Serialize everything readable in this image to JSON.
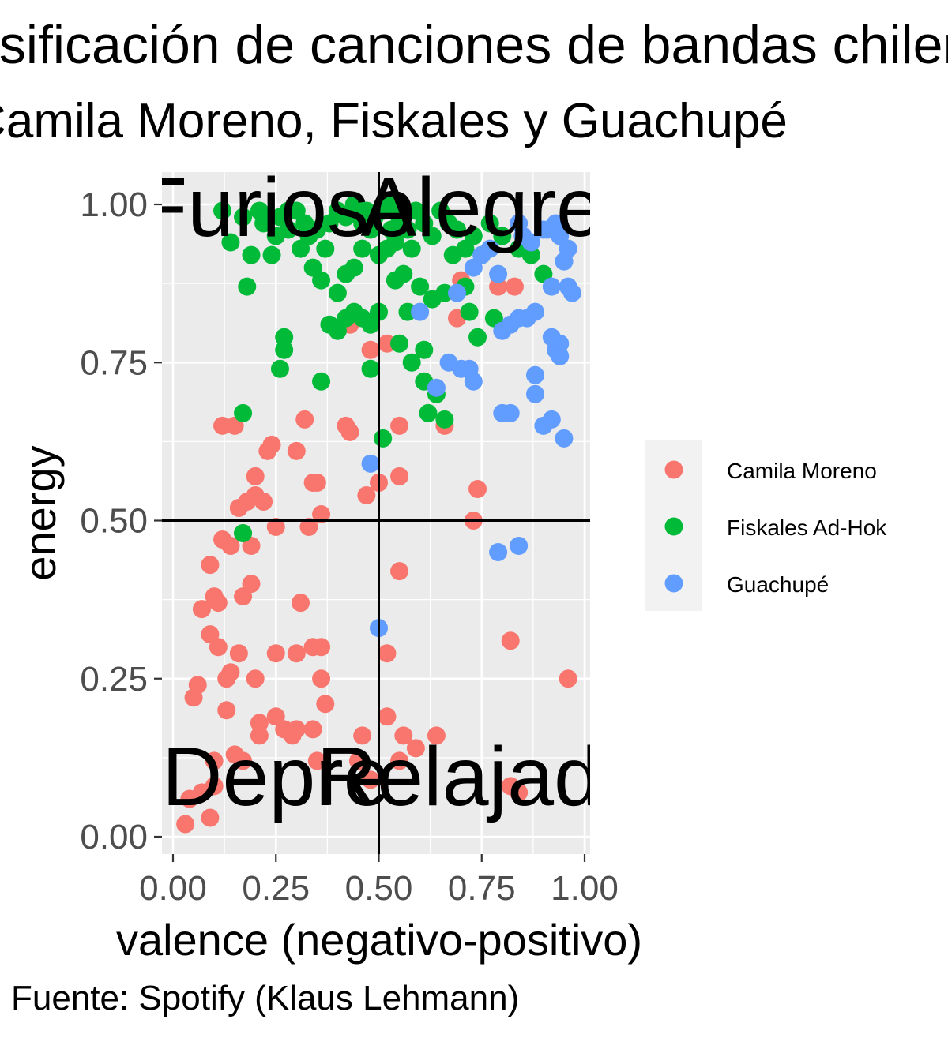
{
  "title": "Clasificación de canciones de bandas chilenas",
  "subtitle": "Camila Moreno, Fiskales y Guachupé",
  "caption": "Fuente: Spotify (Klaus Lehmann)",
  "chart_data": {
    "type": "scatter",
    "xlabel": "valence (negativo-positivo)",
    "ylabel": "energy",
    "xlim": [
      0,
      1
    ],
    "ylim": [
      0,
      1
    ],
    "xticks": [
      "0.00",
      "0.25",
      "0.50",
      "0.75",
      "1.00"
    ],
    "yticks": [
      "0.00",
      "0.25",
      "0.50",
      "0.75",
      "1.00"
    ],
    "grid": true,
    "legend_position": "right",
    "reference_lines": {
      "x": 0.5,
      "y": 0.5
    },
    "quadrant_labels": [
      {
        "text": "Furioso",
        "x": 0.25,
        "y": 1.0
      },
      {
        "text": "Alegre",
        "x": 0.75,
        "y": 1.0
      },
      {
        "text": "Depre",
        "x": 0.25,
        "y": 0.1
      },
      {
        "text": "Relajado",
        "x": 0.75,
        "y": 0.1
      }
    ],
    "series": [
      {
        "name": "Camila Moreno",
        "color": "#F8766D",
        "points": [
          [
            0.03,
            0.02
          ],
          [
            0.04,
            0.06
          ],
          [
            0.07,
            0.07
          ],
          [
            0.09,
            0.03
          ],
          [
            0.1,
            0.08
          ],
          [
            0.1,
            0.12
          ],
          [
            0.05,
            0.22
          ],
          [
            0.06,
            0.24
          ],
          [
            0.09,
            0.32
          ],
          [
            0.11,
            0.3
          ],
          [
            0.13,
            0.25
          ],
          [
            0.14,
            0.26
          ],
          [
            0.16,
            0.29
          ],
          [
            0.13,
            0.2
          ],
          [
            0.17,
            0.12
          ],
          [
            0.15,
            0.13
          ],
          [
            0.2,
            0.25
          ],
          [
            0.21,
            0.18
          ],
          [
            0.21,
            0.16
          ],
          [
            0.25,
            0.29
          ],
          [
            0.25,
            0.19
          ],
          [
            0.27,
            0.17
          ],
          [
            0.29,
            0.16
          ],
          [
            0.3,
            0.17
          ],
          [
            0.3,
            0.29
          ],
          [
            0.31,
            0.37
          ],
          [
            0.34,
            0.17
          ],
          [
            0.35,
            0.12
          ],
          [
            0.34,
            0.3
          ],
          [
            0.36,
            0.25
          ],
          [
            0.36,
            0.3
          ],
          [
            0.37,
            0.21
          ],
          [
            0.07,
            0.36
          ],
          [
            0.1,
            0.38
          ],
          [
            0.11,
            0.37
          ],
          [
            0.09,
            0.43
          ],
          [
            0.12,
            0.47
          ],
          [
            0.14,
            0.46
          ],
          [
            0.17,
            0.48
          ],
          [
            0.17,
            0.38
          ],
          [
            0.19,
            0.4
          ],
          [
            0.19,
            0.46
          ],
          [
            0.16,
            0.52
          ],
          [
            0.18,
            0.53
          ],
          [
            0.2,
            0.54
          ],
          [
            0.2,
            0.57
          ],
          [
            0.22,
            0.53
          ],
          [
            0.25,
            0.49
          ],
          [
            0.23,
            0.61
          ],
          [
            0.24,
            0.62
          ],
          [
            0.3,
            0.61
          ],
          [
            0.32,
            0.66
          ],
          [
            0.33,
            0.49
          ],
          [
            0.34,
            0.56
          ],
          [
            0.35,
            0.56
          ],
          [
            0.36,
            0.51
          ],
          [
            0.12,
            0.65
          ],
          [
            0.15,
            0.65
          ],
          [
            0.42,
            0.65
          ],
          [
            0.43,
            0.64
          ],
          [
            0.47,
            0.54
          ],
          [
            0.48,
            0.77
          ],
          [
            0.5,
            0.56
          ],
          [
            0.52,
            0.78
          ],
          [
            0.55,
            0.65
          ],
          [
            0.55,
            0.57
          ],
          [
            0.55,
            0.42
          ],
          [
            0.52,
            0.29
          ],
          [
            0.52,
            0.19
          ],
          [
            0.56,
            0.16
          ],
          [
            0.59,
            0.14
          ],
          [
            0.64,
            0.16
          ],
          [
            0.46,
            0.16
          ],
          [
            0.45,
            0.12
          ],
          [
            0.48,
            0.09
          ],
          [
            0.55,
            0.12
          ],
          [
            0.66,
            0.65
          ],
          [
            0.69,
            0.82
          ],
          [
            0.73,
            0.5
          ],
          [
            0.74,
            0.55
          ],
          [
            0.7,
            0.88
          ],
          [
            0.79,
            0.87
          ],
          [
            0.83,
            0.87
          ],
          [
            0.82,
            0.31
          ],
          [
            0.96,
            0.25
          ],
          [
            0.84,
            0.07
          ],
          [
            0.82,
            0.08
          ],
          [
            0.43,
            0.81
          ]
        ]
      },
      {
        "name": "Fiskales Ad-Hok",
        "color": "#00BA38",
        "points": [
          [
            0.12,
            0.99
          ],
          [
            0.14,
            0.94
          ],
          [
            0.17,
            0.98
          ],
          [
            0.19,
            0.92
          ],
          [
            0.18,
            0.87
          ],
          [
            0.22,
            0.97
          ],
          [
            0.24,
            0.92
          ],
          [
            0.26,
            0.98
          ],
          [
            0.28,
            0.99
          ],
          [
            0.3,
            0.99
          ],
          [
            0.31,
            0.93
          ],
          [
            0.33,
            0.95
          ],
          [
            0.35,
            0.96
          ],
          [
            0.37,
            0.93
          ],
          [
            0.38,
            0.97
          ],
          [
            0.4,
            0.99
          ],
          [
            0.42,
            0.98
          ],
          [
            0.44,
            1.0
          ],
          [
            0.46,
            0.97
          ],
          [
            0.47,
            0.99
          ],
          [
            0.49,
            0.98
          ],
          [
            0.51,
            0.99
          ],
          [
            0.53,
            1.0
          ],
          [
            0.55,
            0.98
          ],
          [
            0.57,
            0.96
          ],
          [
            0.59,
            0.99
          ],
          [
            0.61,
            0.97
          ],
          [
            0.63,
            0.95
          ],
          [
            0.65,
            0.99
          ],
          [
            0.67,
            0.97
          ],
          [
            0.69,
            0.96
          ],
          [
            0.71,
            0.93
          ],
          [
            0.73,
            0.95
          ],
          [
            0.75,
            0.92
          ],
          [
            0.77,
            0.97
          ],
          [
            0.8,
            0.95
          ],
          [
            0.84,
            0.93
          ],
          [
            0.87,
            0.92
          ],
          [
            0.34,
            0.9
          ],
          [
            0.36,
            0.88
          ],
          [
            0.4,
            0.86
          ],
          [
            0.42,
            0.89
          ],
          [
            0.44,
            0.9
          ],
          [
            0.46,
            0.93
          ],
          [
            0.48,
            0.96
          ],
          [
            0.5,
            0.92
          ],
          [
            0.52,
            0.93
          ],
          [
            0.54,
            0.94
          ],
          [
            0.56,
            0.89
          ],
          [
            0.38,
            0.81
          ],
          [
            0.4,
            0.8
          ],
          [
            0.42,
            0.82
          ],
          [
            0.44,
            0.83
          ],
          [
            0.46,
            0.82
          ],
          [
            0.48,
            0.81
          ],
          [
            0.5,
            0.83
          ],
          [
            0.54,
            0.88
          ],
          [
            0.57,
            0.83
          ],
          [
            0.6,
            0.87
          ],
          [
            0.63,
            0.85
          ],
          [
            0.66,
            0.86
          ],
          [
            0.71,
            0.87
          ],
          [
            0.72,
            0.83
          ],
          [
            0.74,
            0.79
          ],
          [
            0.78,
            0.82
          ],
          [
            0.9,
            0.89
          ],
          [
            0.27,
            0.79
          ],
          [
            0.27,
            0.77
          ],
          [
            0.26,
            0.74
          ],
          [
            0.36,
            0.72
          ],
          [
            0.48,
            0.74
          ],
          [
            0.55,
            0.78
          ],
          [
            0.58,
            0.75
          ],
          [
            0.61,
            0.77
          ],
          [
            0.61,
            0.72
          ],
          [
            0.64,
            0.7
          ],
          [
            0.62,
            0.67
          ],
          [
            0.66,
            0.66
          ],
          [
            0.17,
            0.67
          ],
          [
            0.17,
            0.48
          ],
          [
            0.51,
            0.63
          ],
          [
            0.28,
            0.96
          ],
          [
            0.32,
            0.97
          ],
          [
            0.21,
            0.99
          ],
          [
            0.25,
            0.95
          ],
          [
            0.53,
            0.96
          ],
          [
            0.58,
            0.93
          ],
          [
            0.68,
            0.92
          ]
        ]
      },
      {
        "name": "Guachupé",
        "color": "#619CFF",
        "points": [
          [
            0.48,
            0.59
          ],
          [
            0.5,
            0.33
          ],
          [
            0.6,
            0.83
          ],
          [
            0.64,
            0.71
          ],
          [
            0.67,
            0.75
          ],
          [
            0.69,
            0.86
          ],
          [
            0.7,
            0.74
          ],
          [
            0.72,
            0.74
          ],
          [
            0.73,
            0.72
          ],
          [
            0.73,
            0.9
          ],
          [
            0.75,
            0.92
          ],
          [
            0.77,
            0.93
          ],
          [
            0.79,
            0.89
          ],
          [
            0.8,
            0.8
          ],
          [
            0.82,
            0.81
          ],
          [
            0.84,
            0.82
          ],
          [
            0.86,
            0.82
          ],
          [
            0.88,
            0.83
          ],
          [
            0.8,
            0.67
          ],
          [
            0.82,
            0.67
          ],
          [
            0.88,
            0.73
          ],
          [
            0.88,
            0.7
          ],
          [
            0.9,
            0.65
          ],
          [
            0.92,
            0.66
          ],
          [
            0.93,
            0.77
          ],
          [
            0.94,
            0.78
          ],
          [
            0.94,
            0.76
          ],
          [
            0.92,
            0.79
          ],
          [
            0.95,
            0.63
          ],
          [
            0.96,
            0.87
          ],
          [
            0.97,
            0.86
          ],
          [
            0.92,
            0.87
          ],
          [
            0.95,
            0.91
          ],
          [
            0.94,
            0.95
          ],
          [
            0.96,
            0.93
          ],
          [
            0.9,
            0.96
          ],
          [
            0.93,
            0.97
          ],
          [
            0.91,
            0.96
          ],
          [
            0.84,
            0.97
          ],
          [
            0.87,
            0.94
          ],
          [
            0.85,
            0.95
          ],
          [
            0.79,
            0.45
          ],
          [
            0.84,
            0.46
          ],
          [
            0.95,
            0.91
          ]
        ]
      }
    ]
  }
}
